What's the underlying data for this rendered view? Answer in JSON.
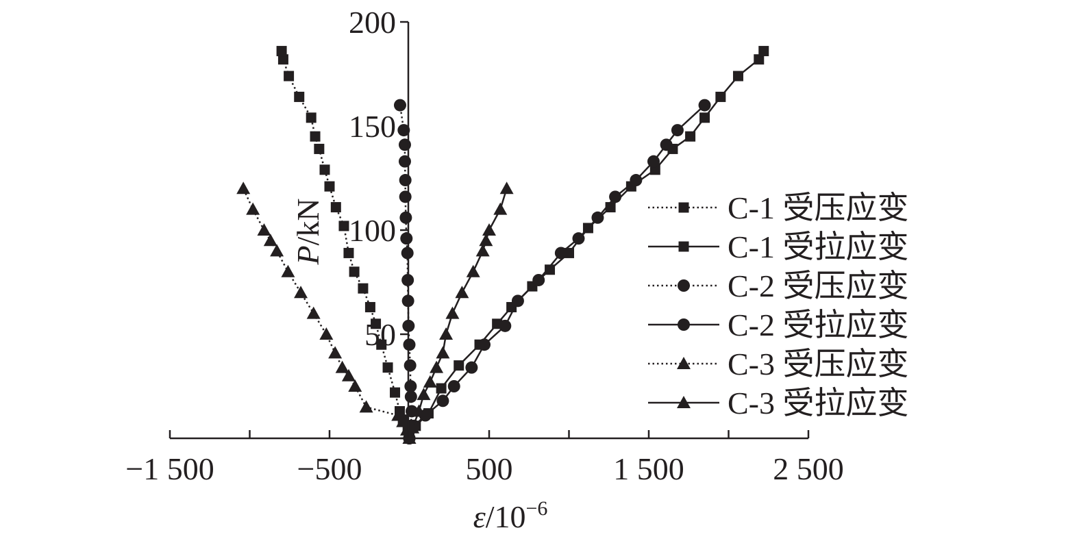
{
  "chart_data": {
    "type": "line",
    "xlabel_var": "ε",
    "xlabel_unit": "/10",
    "xlabel_exp": "−6",
    "ylabel_var": "P",
    "ylabel_unit": "/kN",
    "xlim": [
      -1500,
      2500
    ],
    "ylim": [
      0,
      200
    ],
    "xticks": [
      -1500,
      -1000,
      -500,
      0,
      500,
      1000,
      1500,
      2000,
      2500
    ],
    "xtick_labels": [
      "−1 500",
      "",
      "−500",
      "",
      "500",
      "",
      "1 500",
      "",
      "2 500"
    ],
    "yticks": [
      0,
      50,
      100,
      150,
      200
    ],
    "ytick_labels": [
      "",
      "50",
      "100",
      "150",
      "200"
    ],
    "grid": false,
    "legend_position": "right",
    "series": [
      {
        "name": "C-1 受压应变",
        "marker": "square",
        "line": "dotted",
        "points": [
          [
            0,
            0
          ],
          [
            -10,
            4
          ],
          [
            -40,
            9
          ],
          [
            -60,
            13
          ],
          [
            -90,
            22
          ],
          [
            -135,
            34
          ],
          [
            -175,
            45
          ],
          [
            -210,
            55
          ],
          [
            -245,
            63
          ],
          [
            -290,
            72
          ],
          [
            -345,
            80
          ],
          [
            -380,
            89
          ],
          [
            -410,
            102
          ],
          [
            -460,
            111
          ],
          [
            -500,
            121
          ],
          [
            -530,
            129
          ],
          [
            -565,
            139
          ],
          [
            -590,
            145
          ],
          [
            -615,
            154
          ],
          [
            -690,
            164
          ],
          [
            -755,
            174
          ],
          [
            -790,
            182
          ],
          [
            -800,
            186
          ]
        ]
      },
      {
        "name": "C-1 受拉应变",
        "marker": "square",
        "line": "solid",
        "points": [
          [
            0,
            0
          ],
          [
            40,
            6
          ],
          [
            120,
            12
          ],
          [
            200,
            24
          ],
          [
            310,
            35
          ],
          [
            440,
            45
          ],
          [
            550,
            55
          ],
          [
            640,
            63
          ],
          [
            770,
            73
          ],
          [
            880,
            81
          ],
          [
            1000,
            89
          ],
          [
            1120,
            101
          ],
          [
            1260,
            111
          ],
          [
            1390,
            121
          ],
          [
            1540,
            129
          ],
          [
            1650,
            139
          ],
          [
            1760,
            145
          ],
          [
            1850,
            154
          ],
          [
            1950,
            164
          ],
          [
            2060,
            174
          ],
          [
            2190,
            182
          ],
          [
            2220,
            186
          ]
        ]
      },
      {
        "name": "C-2 受压应变",
        "marker": "circle",
        "line": "dotted",
        "points": [
          [
            0,
            0
          ],
          [
            10,
            6
          ],
          [
            15,
            13
          ],
          [
            10,
            20
          ],
          [
            8,
            25
          ],
          [
            5,
            35
          ],
          [
            0,
            45
          ],
          [
            -5,
            54
          ],
          [
            -8,
            66
          ],
          [
            -10,
            76
          ],
          [
            -12,
            89
          ],
          [
            -18,
            96
          ],
          [
            -22,
            106
          ],
          [
            -25,
            116
          ],
          [
            -25,
            124
          ],
          [
            -28,
            133
          ],
          [
            -28,
            141
          ],
          [
            -35,
            148
          ],
          [
            -58,
            160
          ]
        ]
      },
      {
        "name": "C-2 受拉应变",
        "marker": "circle",
        "line": "solid",
        "points": [
          [
            0,
            0
          ],
          [
            30,
            6
          ],
          [
            100,
            11
          ],
          [
            210,
            18
          ],
          [
            280,
            25
          ],
          [
            390,
            34
          ],
          [
            470,
            45
          ],
          [
            600,
            54
          ],
          [
            680,
            66
          ],
          [
            810,
            76
          ],
          [
            950,
            89
          ],
          [
            1060,
            96
          ],
          [
            1180,
            106
          ],
          [
            1290,
            116
          ],
          [
            1420,
            124
          ],
          [
            1530,
            133
          ],
          [
            1610,
            141
          ],
          [
            1680,
            148
          ],
          [
            1850,
            160
          ]
        ]
      },
      {
        "name": "C-3 受压应变",
        "marker": "triangle",
        "line": "dotted",
        "points": [
          [
            0,
            0
          ],
          [
            -15,
            4
          ],
          [
            -40,
            8
          ],
          [
            -70,
            11
          ],
          [
            -270,
            15
          ],
          [
            -340,
            25
          ],
          [
            -380,
            30
          ],
          [
            -420,
            34
          ],
          [
            -465,
            41
          ],
          [
            -520,
            50
          ],
          [
            -600,
            60
          ],
          [
            -680,
            70
          ],
          [
            -760,
            80
          ],
          [
            -830,
            90
          ],
          [
            -870,
            95
          ],
          [
            -910,
            100
          ],
          [
            -980,
            110
          ],
          [
            -1040,
            120
          ]
        ]
      },
      {
        "name": "C-3 受拉应变",
        "marker": "triangle",
        "line": "solid",
        "points": [
          [
            0,
            0
          ],
          [
            20,
            5
          ],
          [
            60,
            13
          ],
          [
            90,
            21
          ],
          [
            130,
            27
          ],
          [
            170,
            34
          ],
          [
            210,
            41
          ],
          [
            230,
            50
          ],
          [
            270,
            60
          ],
          [
            330,
            70
          ],
          [
            400,
            80
          ],
          [
            460,
            90
          ],
          [
            480,
            95
          ],
          [
            500,
            100
          ],
          [
            570,
            110
          ],
          [
            610,
            120
          ]
        ]
      }
    ]
  }
}
